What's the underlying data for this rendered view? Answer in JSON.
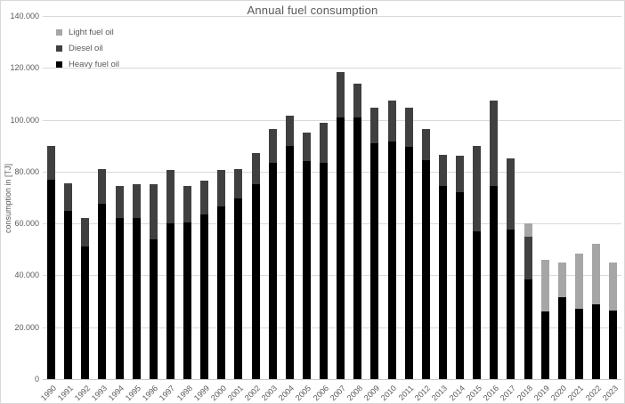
{
  "chart": {
    "title": "Annual fuel consumption",
    "y_axis_title": "consumption in [TJ]",
    "colors": {
      "light_fuel_oil": "#a6a6a6",
      "diesel_oil": "#404040",
      "heavy_fuel_oil": "#000000",
      "gridline": "#d9d9d9",
      "axis_text": "#595959"
    },
    "legend": [
      {
        "label": "Light fuel oil",
        "color": "#a6a6a6"
      },
      {
        "label": "Diesel oil",
        "color": "#404040"
      },
      {
        "label": "Heavy fuel oil",
        "color": "#000000"
      }
    ]
  },
  "chart_data": {
    "type": "bar",
    "stacked": true,
    "title": "Annual fuel consumption",
    "xlabel": "",
    "ylabel": "consumption in [TJ]",
    "ylim": [
      0,
      140000
    ],
    "ytick_values": [
      0,
      20000,
      40000,
      60000,
      80000,
      100000,
      120000,
      140000
    ],
    "ytick_labels": [
      "0",
      "20.000",
      "40.000",
      "60.000",
      "80.000",
      "100.000",
      "120.000",
      "140.000"
    ],
    "grid": true,
    "legend_position": "top-left",
    "categories": [
      "1990",
      "1991",
      "1992",
      "1993",
      "1994",
      "1995",
      "1996",
      "1997",
      "1998",
      "1999",
      "2000",
      "2001",
      "2002",
      "2003",
      "2004",
      "2005",
      "2006",
      "2007",
      "2008",
      "2009",
      "2010",
      "2011",
      "2012",
      "2013",
      "2014",
      "2015",
      "2016",
      "2017",
      "2018",
      "2019",
      "2020",
      "2021",
      "2022",
      "2023"
    ],
    "series": [
      {
        "name": "Heavy fuel oil",
        "color": "#000000",
        "values": [
          77000,
          65000,
          51000,
          67500,
          62000,
          62000,
          54000,
          60000,
          60500,
          63500,
          66500,
          69500,
          75000,
          83500,
          90000,
          84000,
          83500,
          101000,
          101000,
          91000,
          91500,
          89500,
          84500,
          74500,
          72000,
          57000,
          74500,
          57500,
          38500,
          26000,
          31500,
          27000,
          29000,
          26500
        ]
      },
      {
        "name": "Diesel oil",
        "color": "#404040",
        "values": [
          13000,
          10500,
          11000,
          13500,
          12500,
          13000,
          21000,
          20500,
          14000,
          13000,
          14000,
          11500,
          12000,
          13000,
          11500,
          11000,
          15500,
          17500,
          13000,
          13500,
          16000,
          15000,
          12000,
          12000,
          14000,
          33000,
          33000,
          27500,
          16500,
          0,
          0,
          0,
          0,
          0
        ]
      },
      {
        "name": "Light fuel oil",
        "color": "#a6a6a6",
        "values": [
          0,
          0,
          0,
          0,
          0,
          0,
          0,
          0,
          0,
          0,
          0,
          0,
          0,
          0,
          0,
          0,
          0,
          0,
          0,
          0,
          0,
          0,
          0,
          0,
          0,
          0,
          0,
          0,
          5000,
          20000,
          13500,
          21500,
          23000,
          18500
        ]
      }
    ]
  }
}
